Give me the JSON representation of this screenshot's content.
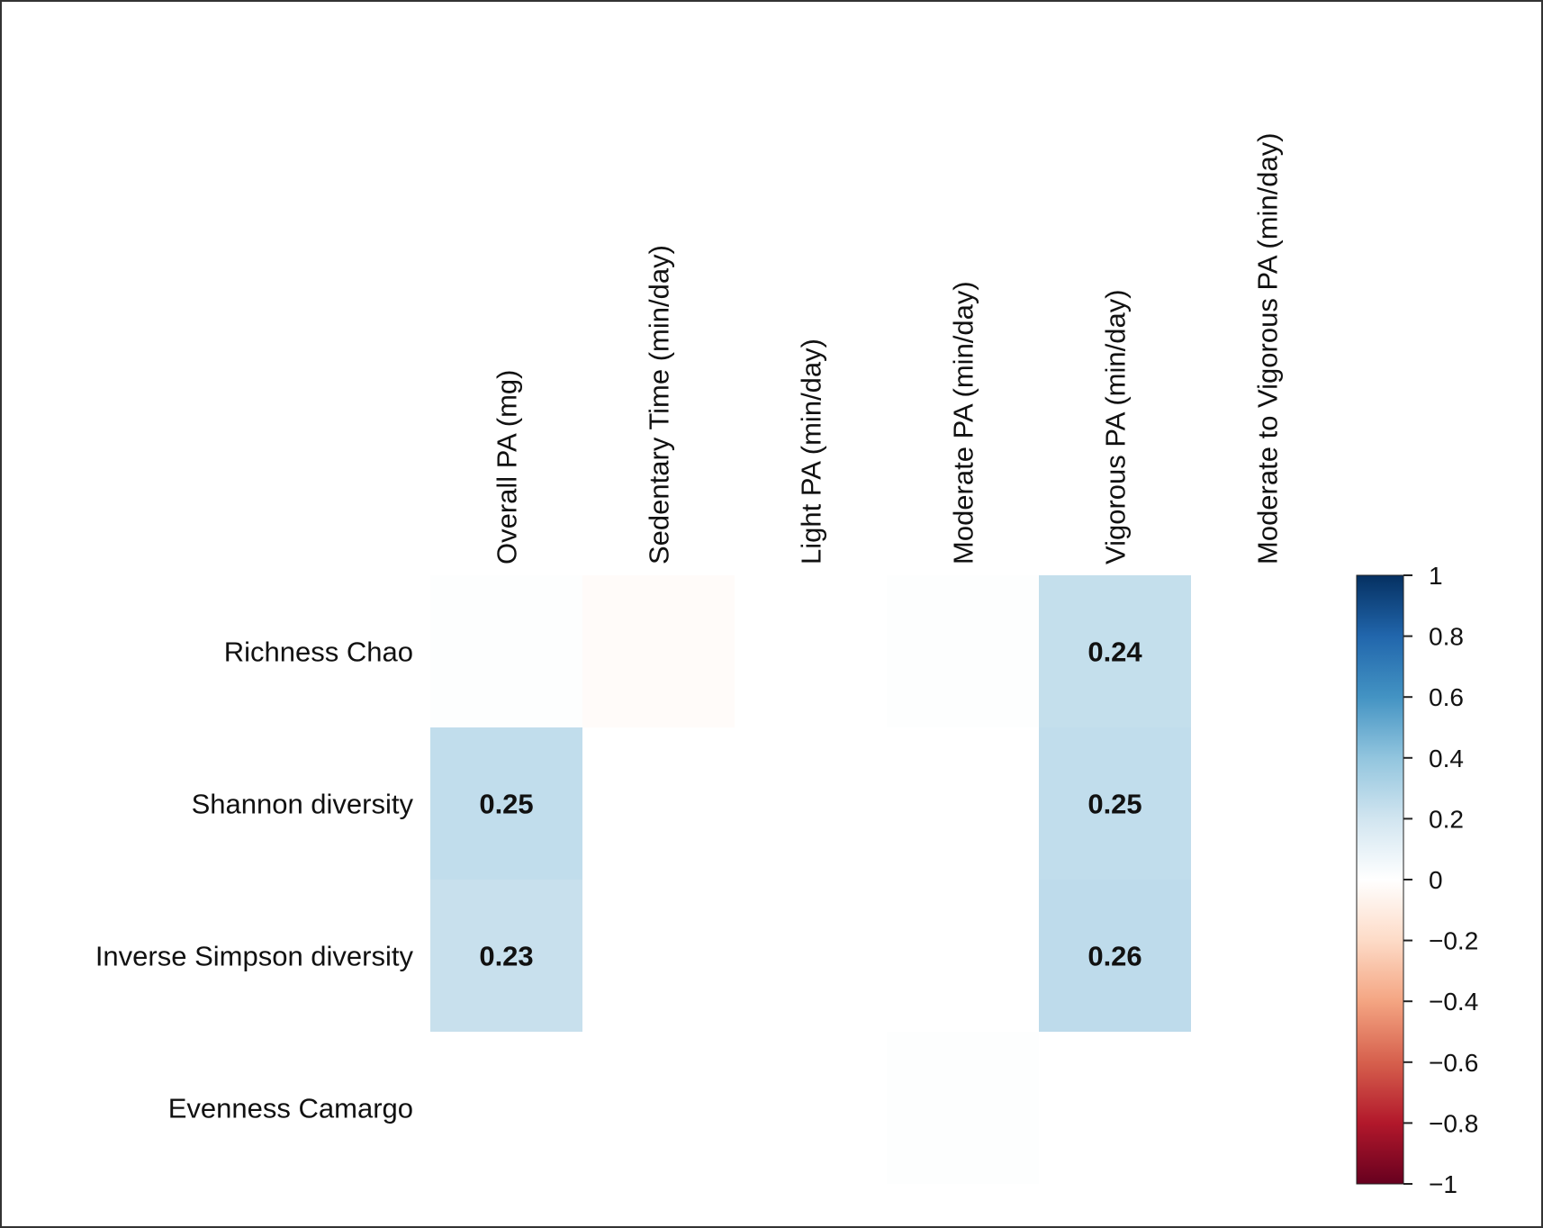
{
  "chart_data": {
    "type": "heatmap",
    "title": "",
    "columns": [
      "Overall PA (mg)",
      "Sedentary Time (min/day)",
      "Light PA (min/day)",
      "Moderate PA (min/day)",
      "Vigorous PA (min/day)",
      "Moderate to Vigorous PA (min/day)"
    ],
    "rows": [
      "Richness Chao",
      "Shannon diversity",
      "Inverse Simpson diversity",
      "Evenness Camargo"
    ],
    "values": [
      [
        0.01,
        -0.02,
        0.0,
        0.01,
        0.24,
        0.0
      ],
      [
        0.25,
        0.0,
        0.0,
        0.0,
        0.25,
        0.0
      ],
      [
        0.23,
        0.0,
        0.0,
        0.0,
        0.26,
        0.0
      ],
      [
        0.0,
        0.0,
        0.0,
        0.01,
        0.0,
        0.0
      ]
    ],
    "labels": [
      [
        "",
        "",
        "",
        "",
        "0.24",
        ""
      ],
      [
        "0.25",
        "",
        "",
        "",
        "0.25",
        ""
      ],
      [
        "0.23",
        "",
        "",
        "",
        "0.26",
        ""
      ],
      [
        "",
        "",
        "",
        "",
        "",
        ""
      ]
    ],
    "color_scale": {
      "range": [
        -1,
        1
      ],
      "ticks": [
        "1",
        "0.8",
        "0.6",
        "0.4",
        "0.2",
        "0",
        "−0.2",
        "−0.4",
        "−0.6",
        "−0.8",
        "−1"
      ],
      "stops": [
        "#053061",
        "#2166AC",
        "#4393C3",
        "#92C5DE",
        "#D1E5F0",
        "#FFFFFF",
        "#FDDBC7",
        "#F4A582",
        "#D6604D",
        "#B2182B",
        "#67001F"
      ]
    },
    "legend_position": "right"
  }
}
